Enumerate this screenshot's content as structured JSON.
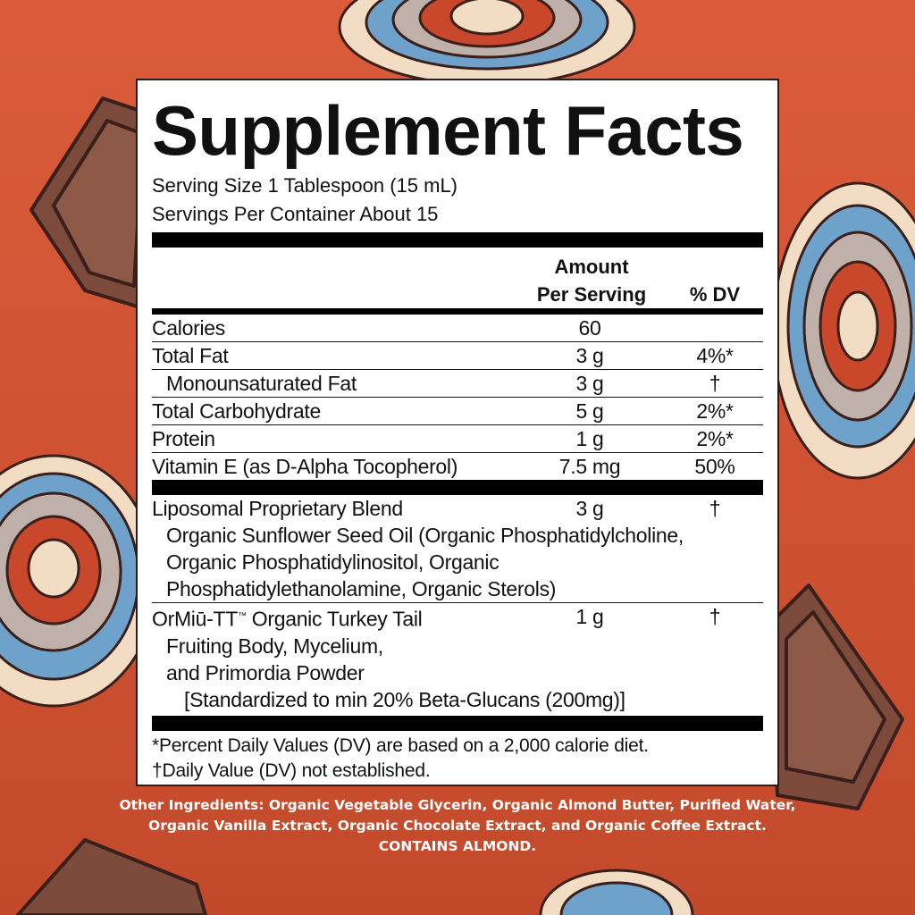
{
  "colors": {
    "background": "#d65a37",
    "panel": "#ffffff",
    "text": "#111111",
    "chocolate": "#7c4b3c",
    "mushroom_cream": "#f3dcc4",
    "mushroom_blue": "#6fa2cb",
    "mushroom_red": "#c9472b",
    "mushroom_grey": "#bfb1a9"
  },
  "icons": [
    "chocolate-piece-icon",
    "turkey-tail-mushroom-icon"
  ],
  "title": "Supplement Facts",
  "serving_size": "Serving Size 1 Tablespoon (15 mL)",
  "servings_per_container": "Servings Per Container About 15",
  "header": {
    "amount_line1": "Amount",
    "amount_line2": "Per Serving",
    "dv": "% DV"
  },
  "nutrients": [
    {
      "name": "Calories",
      "amount": "60",
      "dv": ""
    },
    {
      "name": "Total Fat",
      "amount": "3 g",
      "dv": "4%*"
    },
    {
      "name": "Monounsaturated Fat",
      "amount": "3 g",
      "dv": "†"
    },
    {
      "name": "Total Carbohydrate",
      "amount": "5 g",
      "dv": "2%*"
    },
    {
      "name": "Protein",
      "amount": "1 g",
      "dv": "2%*"
    },
    {
      "name": "Vitamin E (as D-Alpha Tocopherol)",
      "amount": "7.5 mg",
      "dv": "50%"
    }
  ],
  "blend": {
    "name": "Liposomal Proprietary Blend",
    "amount": "3 g",
    "dv": "†",
    "lines": [
      "Organic Sunflower Seed Oil (Organic Phosphatidylcholine,",
      "Organic Phosphatidylinositol, Organic",
      "Phosphatidylethanolamine, Organic Sterols)"
    ]
  },
  "turkey_tail": {
    "name": "OrMiū-TT",
    "tm": "™",
    "name_rest": " Organic Turkey Tail",
    "amount": "1 g",
    "dv": "†",
    "lines": [
      "Fruiting Body, Mycelium,",
      "and Primordia Powder"
    ],
    "standardized": "[Standardized to min 20% Beta-Glucans (200mg)]"
  },
  "footnotes": [
    "*Percent Daily Values (DV) are based on a 2,000 calorie diet.",
    "†Daily Value (DV) not established."
  ],
  "other_ingredients": {
    "text": "Other Ingredients: Organic Vegetable Glycerin, Organic Almond Butter, Purified Water, Organic Vanilla Extract, Organic Chocolate Extract, and Organic Coffee Extract.",
    "allergen": "CONTAINS ALMOND."
  }
}
